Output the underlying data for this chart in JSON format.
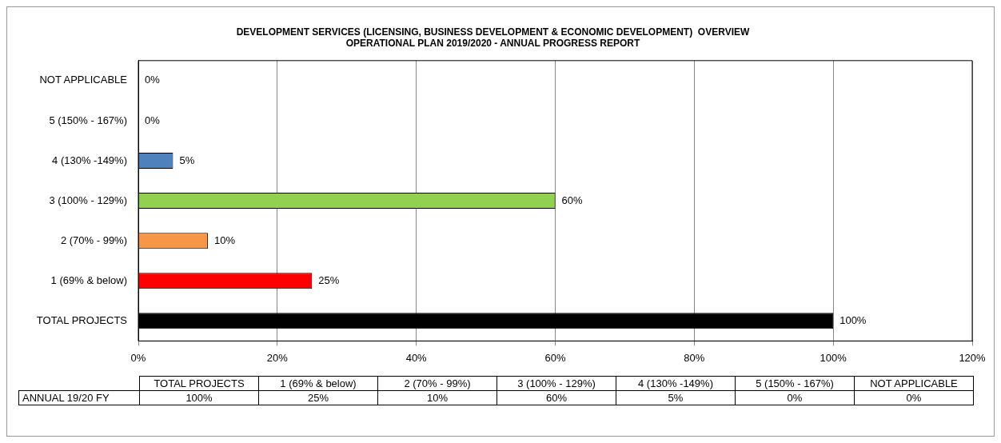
{
  "chart_data": {
    "type": "bar",
    "orientation": "horizontal",
    "title": [
      "DEVELOPMENT SERVICES (LICENSING, BUSINESS DEVELOPMENT & ECONOMIC DEVELOPMENT)  OVERVIEW",
      "OPERATIONAL PLAN 2019/2020 - ANNUAL PROGRESS REPORT"
    ],
    "categories": [
      "NOT APPLICABLE",
      "5 (150% - 167%)",
      "4 (130% -149%)",
      "3 (100% - 129%)",
      "2 (70% - 99%)",
      "1 (69% & below)",
      "TOTAL PROJECTS"
    ],
    "series": [
      {
        "name": "ANNUAL 19/20 FY",
        "colors": [
          "#4f81bd",
          "#4f81bd",
          "#4f81bd",
          "#92d050",
          "#f79646",
          "#ff0000",
          "#000000"
        ],
        "values": [
          0,
          0,
          5,
          60,
          10,
          25,
          100
        ],
        "value_labels": [
          "0%",
          "0%",
          "5%",
          "60%",
          "10%",
          "25%",
          "100%"
        ]
      }
    ],
    "xlim": [
      0,
      120
    ],
    "xticks": [
      {
        "value": 0,
        "label": "0%"
      },
      {
        "value": 20,
        "label": "20%"
      },
      {
        "value": 40,
        "label": "40%"
      },
      {
        "value": 60,
        "label": "60%"
      },
      {
        "value": 80,
        "label": "80%"
      },
      {
        "value": 100,
        "label": "100%"
      },
      {
        "value": 120,
        "label": "120%"
      }
    ],
    "grid": "x"
  }
}
